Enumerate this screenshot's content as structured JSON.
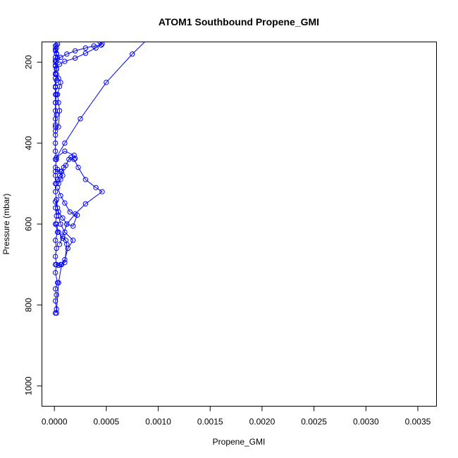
{
  "chart_data": {
    "type": "line",
    "title": "ATOM1 Southbound Propene_GMI",
    "xlabel": "Propene_GMI",
    "ylabel": "Pressure (mbar)",
    "xlim": [
      -0.00012,
      0.00368
    ],
    "ylim": [
      1050,
      150
    ],
    "y_reversed": true,
    "x_ticks": [
      "0.0000",
      "0.0005",
      "0.0010",
      "0.0015",
      "0.0020",
      "0.0025",
      "0.0030",
      "0.0035"
    ],
    "x_tick_values": [
      0,
      0.0005,
      0.001,
      0.0015,
      0.002,
      0.0025,
      0.003,
      0.0035
    ],
    "y_ticks": [
      "200",
      "400",
      "600",
      "800",
      "1000"
    ],
    "y_tick_values": [
      200,
      400,
      600,
      800,
      1000
    ],
    "grid": false,
    "legend": "none",
    "series_color": "#0000ff",
    "series": [
      {
        "x": [
          1e-05,
          2e-05,
          1e-05,
          2e-05,
          1e-05,
          3e-05,
          1e-05,
          2e-05,
          1e-05,
          2e-05,
          1e-05,
          3e-05,
          1e-05,
          2e-05,
          1e-05,
          2e-05,
          1e-05,
          2e-05,
          1e-05,
          1e-05,
          2e-05,
          1e-05,
          1e-05,
          1e-05,
          1e-05,
          1e-05,
          1e-05,
          1e-05,
          1e-05,
          1e-05,
          1e-05
        ],
        "y": [
          820,
          810,
          790,
          775,
          760,
          745,
          720,
          700,
          680,
          660,
          640,
          620,
          600,
          580,
          560,
          540,
          520,
          500,
          480,
          460,
          440,
          420,
          400,
          380,
          360,
          340,
          320,
          300,
          280,
          260,
          240
        ]
      },
      {
        "x": [
          1e-05,
          2e-05,
          1e-05,
          3e-05,
          2e-05,
          1e-05,
          2e-05,
          1e-05,
          3e-05,
          2e-05,
          1e-05,
          2e-05,
          1e-05,
          2e-05,
          1e-05,
          2e-05,
          1e-05,
          2e-05,
          1e-05,
          2e-05,
          1e-05,
          2e-05,
          1e-05
        ],
        "y": [
          228,
          215,
          200,
          190,
          180,
          172,
          165,
          160,
          155,
          158,
          168,
          178,
          188,
          198,
          208,
          218,
          230,
          245,
          262,
          280,
          300,
          330,
          355
        ]
      },
      {
        "x": [
          2e-05,
          4e-05,
          7e-05,
          0.0001,
          0.00013,
          0.00018,
          0.0001,
          6e-05,
          4e-05,
          3e-05,
          2e-05
        ],
        "y": [
          820,
          745,
          700,
          688,
          660,
          640,
          620,
          600,
          580,
          560,
          540
        ]
      },
      {
        "x": [
          1e-05,
          4e-05,
          8e-05,
          0.00012,
          0.00018,
          0.00022,
          0.00015,
          0.0001,
          6e-05,
          3e-05
        ],
        "y": [
          545,
          570,
          585,
          600,
          605,
          578,
          570,
          548,
          530,
          510
        ]
      },
      {
        "x": [
          1e-05,
          3e-05,
          5e-05,
          7e-05,
          9e-05,
          0.00011,
          0.00014,
          0.00016,
          0.00019,
          0.00023,
          0.0003,
          0.0004,
          0.00046,
          0.0003,
          0.0002,
          0.00012,
          8e-05,
          5e-05
        ],
        "y": [
          500,
          490,
          480,
          470,
          460,
          455,
          440,
          435,
          440,
          460,
          490,
          510,
          520,
          550,
          575,
          600,
          630,
          650
        ]
      },
      {
        "x": [
          1e-05,
          4e-05,
          6e-05,
          0.0001,
          0.00012,
          0.00011,
          8e-05,
          4e-05,
          2e-05
        ],
        "y": [
          700,
          702,
          700,
          695,
          650,
          640,
          635,
          620,
          600
        ]
      },
      {
        "x": [
          2e-05,
          0.0001,
          0.00019,
          0.0002
        ],
        "y": [
          435,
          420,
          430,
          438
        ]
      },
      {
        "x": [
          1e-05,
          0.0001,
          0.00025,
          0.0005,
          0.00075,
          0.00095
        ],
        "y": [
          440,
          400,
          340,
          250,
          180,
          130
        ]
      },
      {
        "x": [
          1e-05,
          5e-05,
          0.0001,
          0.0002,
          0.0003,
          0.0004,
          0.00046,
          0.00044
        ],
        "y": [
          210,
          205,
          198,
          190,
          178,
          165,
          155,
          150
        ]
      },
      {
        "x": [
          1e-05,
          6e-05,
          0.00012,
          0.0002,
          0.0003,
          0.00038,
          0.00045
        ],
        "y": [
          195,
          188,
          180,
          172,
          165,
          160,
          158
        ]
      },
      {
        "x": [
          1e-05,
          4e-05,
          5e-05,
          4e-05,
          3e-05,
          5e-05,
          6e-05,
          4e-05,
          2e-05
        ],
        "y": [
          370,
          360,
          320,
          300,
          280,
          260,
          250,
          240,
          230
        ]
      },
      {
        "x": [
          1e-05,
          3e-05,
          6e-05,
          8e-05,
          6e-05,
          4e-05
        ],
        "y": [
          470,
          465,
          470,
          480,
          490,
          500
        ]
      }
    ]
  }
}
